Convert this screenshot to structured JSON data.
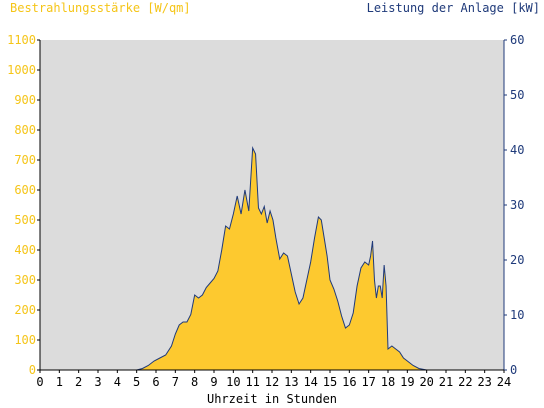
{
  "chart_data": {
    "type": "area",
    "left_axis_title": "Bestrahlungsstärke [W/qm]",
    "right_axis_title": "Leistung der Anlage [kW]",
    "xlabel": "Uhrzeit in Stunden",
    "x_ticks": [
      0,
      1,
      2,
      3,
      4,
      5,
      6,
      7,
      8,
      9,
      10,
      11,
      12,
      13,
      14,
      15,
      16,
      17,
      18,
      19,
      20,
      21,
      22,
      23,
      24
    ],
    "y_left_ticks": [
      0,
      100,
      200,
      300,
      400,
      500,
      600,
      700,
      800,
      900,
      1000,
      1100
    ],
    "y_right_ticks": [
      0,
      10,
      20,
      30,
      40,
      50,
      60
    ],
    "ylim_left": [
      0,
      1100
    ],
    "ylim_right": [
      0,
      60
    ],
    "xlim": [
      0,
      24
    ],
    "colors": {
      "plot_background": "#dcdcdc",
      "irradiance_fill": "#fdc92f",
      "power_line": "#1f3a7a",
      "left_axis_text": "#f5c518",
      "right_axis_text": "#1f3a7a"
    },
    "series": [
      {
        "name": "Bestrahlungsstärke [W/qm]",
        "axis": "left",
        "x": [
          0,
          5.0,
          5.3,
          5.6,
          5.9,
          6.2,
          6.5,
          6.8,
          7.0,
          7.2,
          7.4,
          7.6,
          7.8,
          8.0,
          8.2,
          8.4,
          8.6,
          8.8,
          9.0,
          9.2,
          9.4,
          9.6,
          9.8,
          10.0,
          10.2,
          10.4,
          10.6,
          10.8,
          11.0,
          11.15,
          11.3,
          11.45,
          11.6,
          11.75,
          11.9,
          12.05,
          12.2,
          12.4,
          12.6,
          12.8,
          13.0,
          13.2,
          13.4,
          13.6,
          13.8,
          14.0,
          14.2,
          14.4,
          14.55,
          14.7,
          14.85,
          15.0,
          15.2,
          15.4,
          15.6,
          15.8,
          16.0,
          16.2,
          16.4,
          16.6,
          16.8,
          17.0,
          17.1,
          17.2,
          17.3,
          17.4,
          17.5,
          17.6,
          17.7,
          17.8,
          17.9,
          18.0,
          18.2,
          18.4,
          18.6,
          18.8,
          19.0,
          19.3,
          19.6,
          20.0,
          20.3,
          20.6,
          21.0,
          24.0
        ],
        "values": [
          0,
          0,
          5,
          15,
          30,
          40,
          50,
          80,
          120,
          150,
          160,
          160,
          185,
          250,
          240,
          250,
          275,
          290,
          305,
          330,
          400,
          480,
          470,
          520,
          580,
          520,
          600,
          530,
          740,
          720,
          540,
          520,
          545,
          490,
          530,
          500,
          440,
          370,
          390,
          380,
          320,
          260,
          220,
          240,
          300,
          360,
          440,
          510,
          500,
          440,
          380,
          300,
          270,
          230,
          180,
          140,
          150,
          190,
          280,
          340,
          360,
          350,
          380,
          430,
          300,
          240,
          280,
          280,
          240,
          350,
          280,
          70,
          80,
          70,
          60,
          40,
          30,
          15,
          5,
          0,
          0,
          0,
          0,
          0
        ]
      }
    ]
  }
}
